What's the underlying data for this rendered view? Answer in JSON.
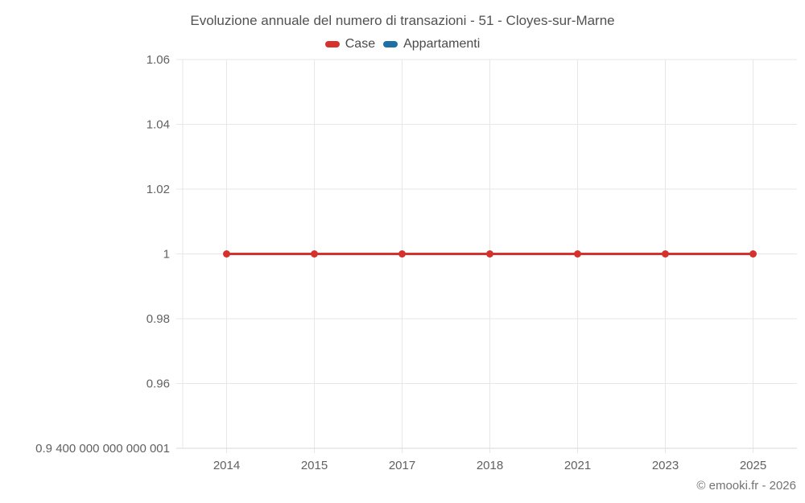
{
  "chart_data": {
    "type": "line",
    "title": "Evoluzione annuale del numero di transazioni - 51 - Cloyes-sur-Marne",
    "xlabel": "",
    "ylabel": "",
    "categories": [
      "2014",
      "2015",
      "2017",
      "2018",
      "2021",
      "2023",
      "2025"
    ],
    "series": [
      {
        "name": "Case",
        "color": "#d5312d",
        "values": [
          1,
          1,
          1,
          1,
          1,
          1,
          1
        ]
      },
      {
        "name": "Appartamenti",
        "color": "#1d6fa5",
        "values": [
          null,
          null,
          null,
          null,
          null,
          null,
          null
        ]
      }
    ],
    "ylim": [
      0.94,
      1.06
    ],
    "yticks": [
      {
        "value": 1.06,
        "label": "1.06"
      },
      {
        "value": 1.04,
        "label": "1.04"
      },
      {
        "value": 1.02,
        "label": "1.02"
      },
      {
        "value": 1.0,
        "label": "1"
      },
      {
        "value": 0.98,
        "label": "0.98"
      },
      {
        "value": 0.96,
        "label": "0.96"
      },
      {
        "value": 0.94,
        "label": "0.9 400 000 000 000 001"
      }
    ],
    "grid": true,
    "legend_position": "top",
    "marker": "circle"
  },
  "footer": {
    "copyright": "© emooki.fr - 2026"
  },
  "colors": {
    "grid": "#e7e7e7",
    "axis": "#d9d9d9",
    "tick_text": "#616161",
    "title_text": "#525252",
    "case_red": "#d5312d",
    "appartamenti_blue": "#1d6fa5"
  }
}
